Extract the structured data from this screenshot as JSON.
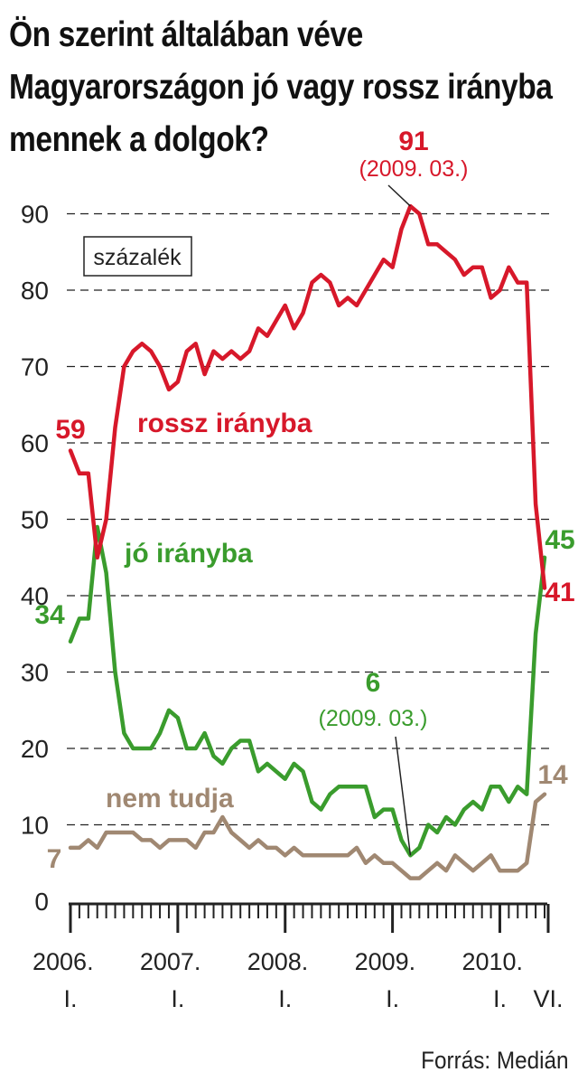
{
  "title_lines": [
    "Ön szerint általában véve",
    "Magyarországon jó vagy rossz irányba",
    "mennek a dolgok?"
  ],
  "source": "Forrás: Medián",
  "chart_data": {
    "type": "line",
    "unit_box": "százalék",
    "ylim": [
      0,
      95
    ],
    "yticks": [
      0,
      10,
      20,
      30,
      40,
      50,
      60,
      70,
      80,
      90
    ],
    "grid": "dashed horizontal",
    "x_start_month": "2006-01",
    "x_end_month": "2010-06",
    "x_tick_labels": [
      {
        "year": "2006.",
        "sub": "I."
      },
      {
        "year": "2007.",
        "sub": "I."
      },
      {
        "year": "2008.",
        "sub": "I."
      },
      {
        "year": "2009.",
        "sub": "I."
      },
      {
        "year": "2010.",
        "sub": "I."
      },
      {
        "year": "",
        "sub": "VI."
      }
    ],
    "colors": {
      "rossz": "#d7182a",
      "jo": "#3a9c2d",
      "nem": "#a08872",
      "text": "#222222"
    },
    "series": [
      {
        "name": "rossz irányba",
        "key": "rossz",
        "values": [
          {
            "x": "2006-01",
            "y": 59
          },
          {
            "x": "2006-02",
            "y": 56
          },
          {
            "x": "2006-03",
            "y": 56
          },
          {
            "x": "2006-04",
            "y": 45
          },
          {
            "x": "2006-05",
            "y": 50
          },
          {
            "x": "2006-06",
            "y": 62
          },
          {
            "x": "2006-07",
            "y": 70
          },
          {
            "x": "2006-08",
            "y": 72
          },
          {
            "x": "2006-09",
            "y": 73
          },
          {
            "x": "2006-10",
            "y": 72
          },
          {
            "x": "2006-11",
            "y": 70
          },
          {
            "x": "2006-12",
            "y": 67
          },
          {
            "x": "2007-01",
            "y": 68
          },
          {
            "x": "2007-02",
            "y": 72
          },
          {
            "x": "2007-03",
            "y": 73
          },
          {
            "x": "2007-04",
            "y": 69
          },
          {
            "x": "2007-05",
            "y": 72
          },
          {
            "x": "2007-06",
            "y": 71
          },
          {
            "x": "2007-07",
            "y": 72
          },
          {
            "x": "2007-08",
            "y": 71
          },
          {
            "x": "2007-09",
            "y": 72
          },
          {
            "x": "2007-10",
            "y": 75
          },
          {
            "x": "2007-11",
            "y": 74
          },
          {
            "x": "2007-12",
            "y": 76
          },
          {
            "x": "2008-01",
            "y": 78
          },
          {
            "x": "2008-02",
            "y": 75
          },
          {
            "x": "2008-03",
            "y": 77
          },
          {
            "x": "2008-04",
            "y": 81
          },
          {
            "x": "2008-05",
            "y": 82
          },
          {
            "x": "2008-06",
            "y": 81
          },
          {
            "x": "2008-07",
            "y": 78
          },
          {
            "x": "2008-08",
            "y": 79
          },
          {
            "x": "2008-09",
            "y": 78
          },
          {
            "x": "2008-10",
            "y": 80
          },
          {
            "x": "2008-11",
            "y": 82
          },
          {
            "x": "2008-12",
            "y": 84
          },
          {
            "x": "2009-01",
            "y": 83
          },
          {
            "x": "2009-02",
            "y": 88
          },
          {
            "x": "2009-03",
            "y": 91
          },
          {
            "x": "2009-04",
            "y": 90
          },
          {
            "x": "2009-05",
            "y": 86
          },
          {
            "x": "2009-06",
            "y": 86
          },
          {
            "x": "2009-07",
            "y": 85
          },
          {
            "x": "2009-08",
            "y": 84
          },
          {
            "x": "2009-09",
            "y": 82
          },
          {
            "x": "2009-10",
            "y": 83
          },
          {
            "x": "2009-11",
            "y": 83
          },
          {
            "x": "2009-12",
            "y": 79
          },
          {
            "x": "2010-01",
            "y": 80
          },
          {
            "x": "2010-02",
            "y": 83
          },
          {
            "x": "2010-03",
            "y": 81
          },
          {
            "x": "2010-04",
            "y": 81
          },
          {
            "x": "2010-05",
            "y": 52
          },
          {
            "x": "2010-06",
            "y": 41
          }
        ]
      },
      {
        "name": "jó irányba",
        "key": "jo",
        "values": [
          {
            "x": "2006-01",
            "y": 34
          },
          {
            "x": "2006-02",
            "y": 37
          },
          {
            "x": "2006-03",
            "y": 37
          },
          {
            "x": "2006-04",
            "y": 49
          },
          {
            "x": "2006-05",
            "y": 43
          },
          {
            "x": "2006-06",
            "y": 30
          },
          {
            "x": "2006-07",
            "y": 22
          },
          {
            "x": "2006-08",
            "y": 20
          },
          {
            "x": "2006-09",
            "y": 20
          },
          {
            "x": "2006-10",
            "y": 20
          },
          {
            "x": "2006-11",
            "y": 22
          },
          {
            "x": "2006-12",
            "y": 25
          },
          {
            "x": "2007-01",
            "y": 24
          },
          {
            "x": "2007-02",
            "y": 20
          },
          {
            "x": "2007-03",
            "y": 20
          },
          {
            "x": "2007-04",
            "y": 22
          },
          {
            "x": "2007-05",
            "y": 19
          },
          {
            "x": "2007-06",
            "y": 18
          },
          {
            "x": "2007-07",
            "y": 20
          },
          {
            "x": "2007-08",
            "y": 21
          },
          {
            "x": "2007-09",
            "y": 21
          },
          {
            "x": "2007-10",
            "y": 17
          },
          {
            "x": "2007-11",
            "y": 18
          },
          {
            "x": "2007-12",
            "y": 17
          },
          {
            "x": "2008-01",
            "y": 16
          },
          {
            "x": "2008-02",
            "y": 18
          },
          {
            "x": "2008-03",
            "y": 17
          },
          {
            "x": "2008-04",
            "y": 13
          },
          {
            "x": "2008-05",
            "y": 12
          },
          {
            "x": "2008-06",
            "y": 14
          },
          {
            "x": "2008-07",
            "y": 15
          },
          {
            "x": "2008-08",
            "y": 15
          },
          {
            "x": "2008-09",
            "y": 15
          },
          {
            "x": "2008-10",
            "y": 15
          },
          {
            "x": "2008-11",
            "y": 11
          },
          {
            "x": "2008-12",
            "y": 12
          },
          {
            "x": "2009-01",
            "y": 12
          },
          {
            "x": "2009-02",
            "y": 8
          },
          {
            "x": "2009-03",
            "y": 6
          },
          {
            "x": "2009-04",
            "y": 7
          },
          {
            "x": "2009-05",
            "y": 10
          },
          {
            "x": "2009-06",
            "y": 9
          },
          {
            "x": "2009-07",
            "y": 11
          },
          {
            "x": "2009-08",
            "y": 10
          },
          {
            "x": "2009-09",
            "y": 12
          },
          {
            "x": "2009-10",
            "y": 13
          },
          {
            "x": "2009-11",
            "y": 12
          },
          {
            "x": "2009-12",
            "y": 15
          },
          {
            "x": "2010-01",
            "y": 15
          },
          {
            "x": "2010-02",
            "y": 13
          },
          {
            "x": "2010-03",
            "y": 15
          },
          {
            "x": "2010-04",
            "y": 14
          },
          {
            "x": "2010-05",
            "y": 35
          },
          {
            "x": "2010-06",
            "y": 45
          }
        ]
      },
      {
        "name": "nem tudja",
        "key": "nem",
        "values": [
          {
            "x": "2006-01",
            "y": 7
          },
          {
            "x": "2006-02",
            "y": 7
          },
          {
            "x": "2006-03",
            "y": 8
          },
          {
            "x": "2006-04",
            "y": 7
          },
          {
            "x": "2006-05",
            "y": 9
          },
          {
            "x": "2006-06",
            "y": 9
          },
          {
            "x": "2006-07",
            "y": 9
          },
          {
            "x": "2006-08",
            "y": 9
          },
          {
            "x": "2006-09",
            "y": 8
          },
          {
            "x": "2006-10",
            "y": 8
          },
          {
            "x": "2006-11",
            "y": 7
          },
          {
            "x": "2006-12",
            "y": 8
          },
          {
            "x": "2007-01",
            "y": 8
          },
          {
            "x": "2007-02",
            "y": 8
          },
          {
            "x": "2007-03",
            "y": 7
          },
          {
            "x": "2007-04",
            "y": 9
          },
          {
            "x": "2007-05",
            "y": 9
          },
          {
            "x": "2007-06",
            "y": 11
          },
          {
            "x": "2007-07",
            "y": 9
          },
          {
            "x": "2007-08",
            "y": 8
          },
          {
            "x": "2007-09",
            "y": 7
          },
          {
            "x": "2007-10",
            "y": 8
          },
          {
            "x": "2007-11",
            "y": 7
          },
          {
            "x": "2007-12",
            "y": 7
          },
          {
            "x": "2008-01",
            "y": 6
          },
          {
            "x": "2008-02",
            "y": 7
          },
          {
            "x": "2008-03",
            "y": 6
          },
          {
            "x": "2008-04",
            "y": 6
          },
          {
            "x": "2008-05",
            "y": 6
          },
          {
            "x": "2008-06",
            "y": 6
          },
          {
            "x": "2008-07",
            "y": 6
          },
          {
            "x": "2008-08",
            "y": 6
          },
          {
            "x": "2008-09",
            "y": 7
          },
          {
            "x": "2008-10",
            "y": 5
          },
          {
            "x": "2008-11",
            "y": 6
          },
          {
            "x": "2008-12",
            "y": 5
          },
          {
            "x": "2009-01",
            "y": 5
          },
          {
            "x": "2009-02",
            "y": 4
          },
          {
            "x": "2009-03",
            "y": 3
          },
          {
            "x": "2009-04",
            "y": 3
          },
          {
            "x": "2009-05",
            "y": 4
          },
          {
            "x": "2009-06",
            "y": 5
          },
          {
            "x": "2009-07",
            "y": 4
          },
          {
            "x": "2009-08",
            "y": 6
          },
          {
            "x": "2009-09",
            "y": 5
          },
          {
            "x": "2009-10",
            "y": 4
          },
          {
            "x": "2009-11",
            "y": 5
          },
          {
            "x": "2009-12",
            "y": 6
          },
          {
            "x": "2010-01",
            "y": 4
          },
          {
            "x": "2010-02",
            "y": 4
          },
          {
            "x": "2010-03",
            "y": 4
          },
          {
            "x": "2010-04",
            "y": 5
          },
          {
            "x": "2010-05",
            "y": 13
          },
          {
            "x": "2010-06",
            "y": 14
          }
        ]
      }
    ],
    "series_labels": [
      {
        "key": "rossz",
        "text": "rossz irányba"
      },
      {
        "key": "jo",
        "text": "jó irányba"
      },
      {
        "key": "nem",
        "text": "nem tudja"
      }
    ],
    "value_labels": [
      {
        "key": "rossz",
        "text": "59"
      },
      {
        "key": "rossz",
        "text": "41"
      },
      {
        "key": "jo",
        "text": "34"
      },
      {
        "key": "jo",
        "text": "45"
      },
      {
        "key": "nem",
        "text": "7"
      },
      {
        "key": "nem",
        "text": "14"
      }
    ],
    "annotations": [
      {
        "key": "rossz",
        "value": "91",
        "date": "(2009. 03.)"
      },
      {
        "key": "jo",
        "value": "6",
        "date": "(2009. 03.)"
      }
    ]
  }
}
